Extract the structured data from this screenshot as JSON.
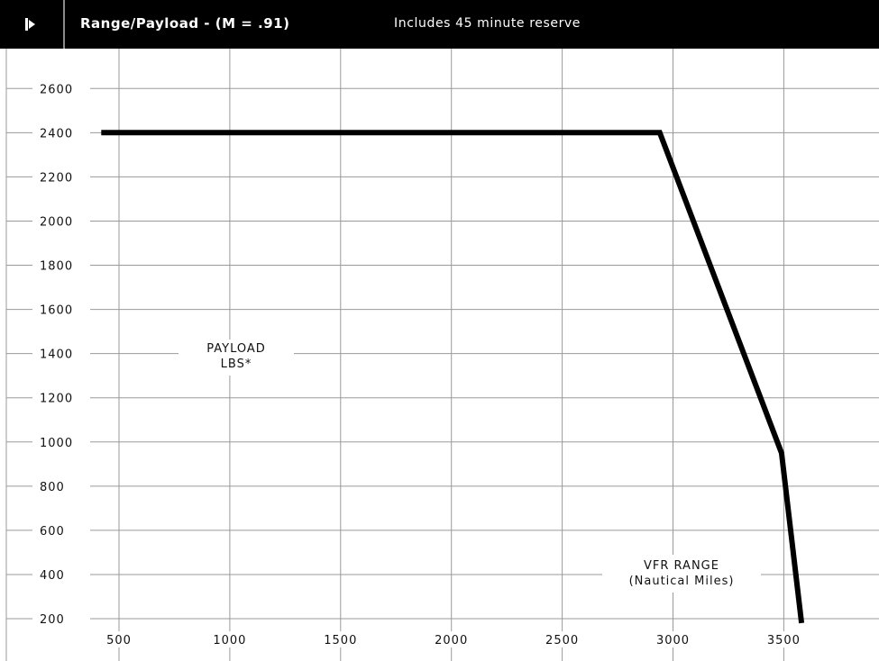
{
  "header": {
    "title": "Range/Payload - (M = .91)",
    "subtitle": "Includes 45 minute reserve",
    "icon": "play-bar-icon"
  },
  "chart_data": {
    "type": "line",
    "title": "Range/Payload - (M = .91)",
    "subtitle": "Includes 45 minute reserve",
    "xlabel": "VFR RANGE (Nautical Miles)",
    "ylabel": "PAYLOAD LBS*",
    "annotations": {
      "ylabel_lines": [
        "PAYLOAD",
        "LBS*"
      ],
      "xlabel_lines": [
        "VFR RANGE",
        "(Nautical Miles)"
      ]
    },
    "xlim": [
      400,
      3850
    ],
    "ylim": [
      160,
      2740
    ],
    "x_ticks": [
      500,
      1000,
      1500,
      2000,
      2500,
      3000,
      3500
    ],
    "x_tick_labels": [
      "500",
      "1000",
      "1500",
      "2000",
      "2500",
      "3000",
      "3500"
    ],
    "y_ticks": [
      200,
      400,
      600,
      800,
      1000,
      1200,
      1400,
      1600,
      1800,
      2000,
      2200,
      2400,
      2600
    ],
    "y_tick_labels": [
      "200",
      "400",
      "600",
      "800",
      "1000",
      "1200",
      "1400",
      "1600",
      "1800",
      "2000",
      "2200",
      "2400",
      "2600"
    ],
    "grid": true,
    "series": [
      {
        "x": [
          420,
          2940,
          3490,
          3580
        ],
        "y": [
          2400,
          2400,
          950,
          180
        ]
      }
    ],
    "colors": {
      "line": "#000000",
      "grid": "#9a9a9a",
      "header_bg": "#000000",
      "header_text": "#ffffff"
    }
  }
}
